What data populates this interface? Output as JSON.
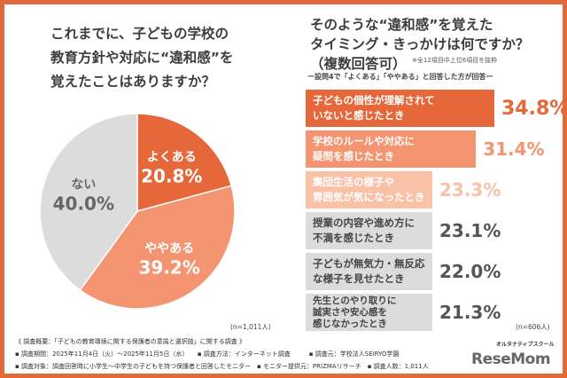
{
  "colors": {
    "frame": "#e3693a",
    "often": "#e6673a",
    "sometimes": "#f59470",
    "light": "#f9c1a6",
    "gray": "#dcdcdc"
  },
  "left": {
    "title": "これまでに、子どもの学校の\n教育方針や対応に“違和感”を\n覚えたことはありますか？",
    "n": "(n=1,011人)",
    "chart_data": {
      "type": "pie",
      "categories": [
        "よくある",
        "ややある",
        "ない"
      ],
      "values": [
        20.8,
        39.2,
        40.0
      ],
      "labels": [
        "20.8%",
        "39.2%",
        "40.0%"
      ]
    }
  },
  "right": {
    "title_lines": [
      "そのような“違和感”を覚えた",
      "タイミング・きっかけは何ですか？",
      "（複数回答可）"
    ],
    "note": "※全12項目中上位6項目を抜粋",
    "subtitle": "ー設問4で「よくある」「ややある」と回答した方が回答ー",
    "n": "(n=606人)",
    "chart_data": {
      "type": "bar",
      "orientation": "horizontal",
      "categories": [
        "子どもの個性が理解されて\nいないと感じたとき",
        "学校のルールや対応に\n疑問を感じたとき",
        "集団生活の様子や\n雰囲気が気になったとき",
        "授業の内容や進め方に\n不満を感じたとき",
        "子どもが無気力・無反応\nな様子を見せたとき",
        "先生とのやり取りに\n誠実さや安心感を\n感じなかったとき"
      ],
      "values": [
        34.8,
        31.4,
        23.3,
        23.1,
        22.0,
        21.3
      ],
      "labels": [
        "34.8%",
        "31.4%",
        "23.3%",
        "23.1%",
        "22.0%",
        "21.3%"
      ]
    }
  },
  "footer": {
    "line1": "《 調査概要：「子どもの教育環境に関する保護者の意識と選択肢」に関する調査 》",
    "line2": "▪ 調査期間：2025年11月4日（火）～2025年11月5日（水）　　▪ 調査方法：インターネット調査　　　▪ 調査元：学校法人SEiRYO学園",
    "line3": "▪ 調査対象：調査回答時に小学生～中学生の子どもを持つ保護者と回答したモニター　▪ モニター提供元：PRIZMAリサーチ　▪ 調査人数：1,011人",
    "logo_brand": "オルタナティブスクール",
    "logo_text": "ReseMom"
  }
}
